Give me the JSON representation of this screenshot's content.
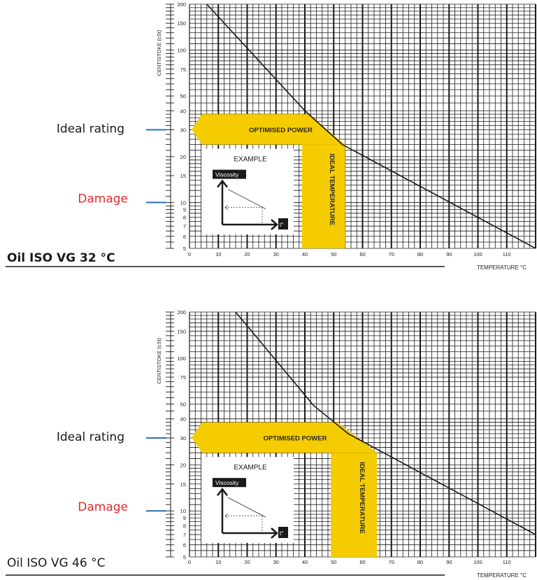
{
  "charts": [
    {
      "title": "Oil ISO VG 32 °C",
      "title_weight": "bold",
      "ylabel": "CENTISTOKE (cSt)",
      "xlabel": "TEMPERATURE °C",
      "side_labels": {
        "ideal": "Ideal rating",
        "damage": "Damage"
      },
      "band_horizontal_label": "OPTIMISED POWER",
      "band_vertical_label": "IDEAL TEMPERATURE",
      "example": {
        "title": "EXAMPLE",
        "viscosity_label": "Viscosity",
        "temp_label": "t°"
      }
    },
    {
      "title": "Oil ISO VG 46 °C",
      "title_weight": "normal",
      "ylabel": "CENTISTOKE (cSt)",
      "xlabel": "TEMPERATURE °C",
      "side_labels": {
        "ideal": "Ideal rating",
        "damage": "Damage"
      },
      "band_horizontal_label": "OPTIMISED POWER",
      "band_vertical_label": "IDEAL TEMPERATURE",
      "example": {
        "title": "EXAMPLE",
        "viscosity_label": "Viscosity",
        "temp_label": "t°"
      }
    }
  ],
  "colors": {
    "band": "#f5cc00",
    "ideal_color": "#1a1a1a",
    "damage_color": "#e32b2b",
    "marker_color": "#2a6fb5"
  },
  "chart_data": [
    {
      "type": "line",
      "title": "Oil ISO VG 32 °C",
      "xlabel": "TEMPERATURE °C",
      "ylabel": "CENTISTOKE (cSt)",
      "y_scale": "log",
      "xlim": [
        0,
        120
      ],
      "ylim": [
        5,
        200
      ],
      "x_ticks": [
        0,
        10,
        20,
        30,
        40,
        50,
        60,
        70,
        80,
        90,
        100,
        110
      ],
      "y_ticks": [
        5,
        6,
        7,
        8,
        9,
        10,
        15,
        20,
        30,
        40,
        50,
        75,
        100,
        150,
        200
      ],
      "series": [
        {
          "x": [
            6,
            40,
            53,
            120
          ],
          "y": [
            200,
            40,
            24,
            5
          ]
        }
      ],
      "optimised_power_band_cSt": [
        24,
        38
      ],
      "ideal_temperature_band_C": [
        39,
        54
      ],
      "ideal_rating_cSt": 30,
      "damage_cSt": 10
    },
    {
      "type": "line",
      "title": "Oil ISO VG 46 °C",
      "xlabel": "TEMPERATURE °C",
      "ylabel": "CENTISTOKE (cSt)",
      "y_scale": "log",
      "xlim": [
        0,
        120
      ],
      "ylim": [
        5,
        200
      ],
      "x_ticks": [
        0,
        10,
        20,
        30,
        40,
        50,
        60,
        70,
        80,
        90,
        100,
        110
      ],
      "y_ticks": [
        5,
        6,
        7,
        8,
        9,
        10,
        15,
        20,
        30,
        40,
        50,
        75,
        100,
        150,
        200
      ],
      "series": [
        {
          "x": [
            16,
            43,
            55,
            120
          ],
          "y": [
            200,
            49,
            32,
            7
          ]
        }
      ],
      "optimised_power_band_cSt": [
        24,
        38
      ],
      "ideal_temperature_band_C": [
        49,
        65
      ],
      "ideal_rating_cSt": 30,
      "damage_cSt": 10
    }
  ]
}
